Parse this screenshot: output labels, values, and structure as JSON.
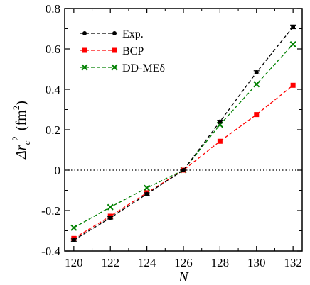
{
  "chart_data": {
    "type": "line",
    "xlabel": "N",
    "ylabel": {
      "main": "Δr",
      "sub": "c",
      "sup": "2",
      "unit": "(fm",
      "unit_sup": "2",
      "unit_close": ")"
    },
    "xlim": [
      119.5,
      132.5
    ],
    "ylim": [
      -0.4,
      0.8
    ],
    "xticks": [
      120,
      122,
      124,
      126,
      128,
      130,
      132
    ],
    "yticks": [
      -0.4,
      -0.2,
      0,
      0.2,
      0.4,
      0.6,
      0.8
    ],
    "ytick_labels": [
      "-0.4",
      "-0.2",
      "0",
      "0.2",
      "0.4",
      "0.6",
      "0.8"
    ],
    "zero_line": true,
    "legend_position": "top-left",
    "series": [
      {
        "name": "Exp.",
        "color": "#000000",
        "marker": "circle",
        "x": [
          120,
          122,
          124,
          126,
          128,
          130,
          132
        ],
        "y": [
          -0.346,
          -0.236,
          -0.118,
          0.0,
          0.24,
          0.484,
          0.709
        ],
        "err": [
          0.006,
          0.006,
          0.006,
          0.0,
          0.007,
          0.008,
          0.009
        ]
      },
      {
        "name": "BCP",
        "color": "#ff0000",
        "marker": "square",
        "x": [
          120,
          122,
          124,
          126,
          128,
          130,
          132
        ],
        "y": [
          -0.338,
          -0.228,
          -0.112,
          0.0,
          0.143,
          0.275,
          0.42
        ]
      },
      {
        "name": "DD-MEδ",
        "color": "#008000",
        "marker": "cross",
        "x": [
          120,
          122,
          124,
          126,
          128,
          130,
          132
        ],
        "y": [
          -0.285,
          -0.183,
          -0.088,
          0.0,
          0.225,
          0.425,
          0.623
        ]
      }
    ]
  }
}
